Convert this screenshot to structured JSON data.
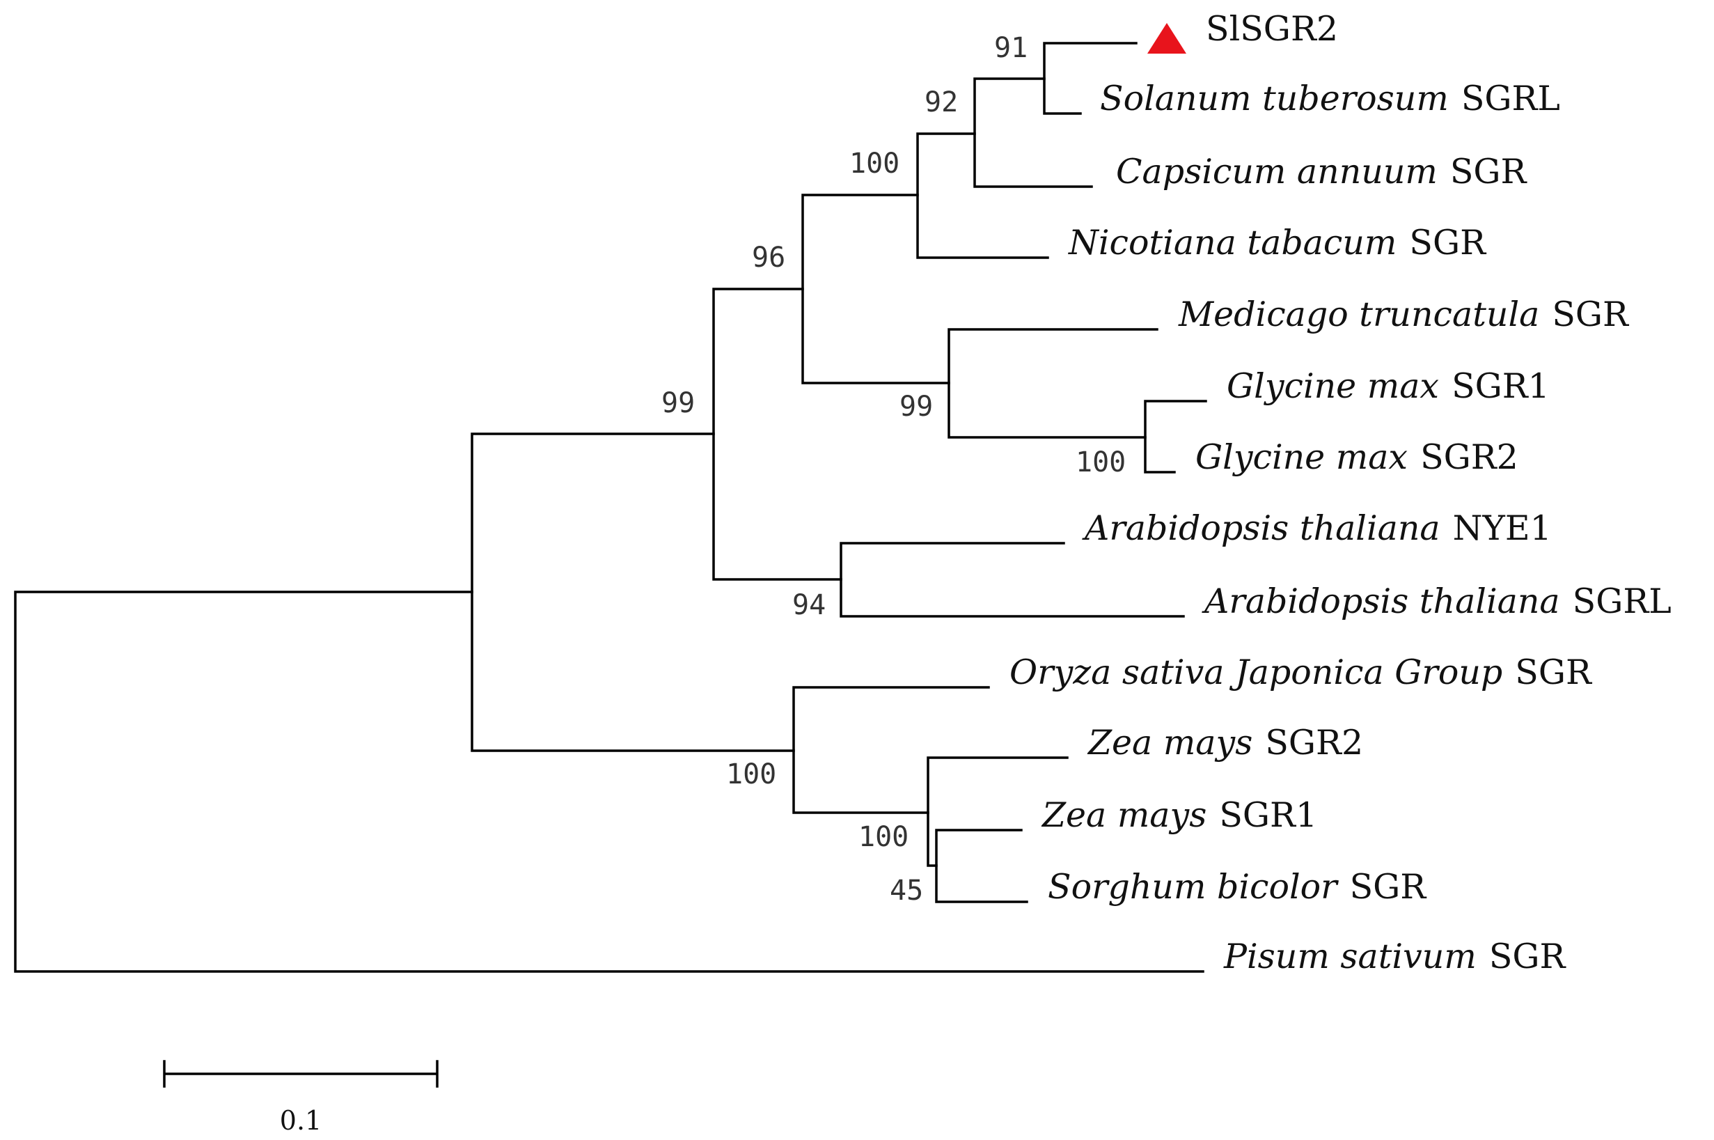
{
  "colors": {
    "branch": "#000000",
    "marker": "#e8141c",
    "text": "#111111",
    "support": "#333333"
  },
  "marker_icon": "red-triangle-icon",
  "taxa": [
    {
      "id": "slsgr2",
      "species": "",
      "gene": "SlSGR2",
      "marked": true
    },
    {
      "id": "stuberosum",
      "species": "Solanum tuberosum",
      "gene": "SGRL"
    },
    {
      "id": "cannuum",
      "species": "Capsicum annuum",
      "gene": "SGR"
    },
    {
      "id": "ntabacum",
      "species": "Nicotiana tabacum",
      "gene": "SGR"
    },
    {
      "id": "mtruncatula",
      "species": "Medicago truncatula",
      "gene": "SGR"
    },
    {
      "id": "gmax1",
      "species": "Glycine max",
      "gene": "SGR1"
    },
    {
      "id": "gmax2",
      "species": "Glycine max",
      "gene": "SGR2"
    },
    {
      "id": "athaliana_nye1",
      "species": "Arabidopsis thaliana",
      "gene": "NYE1"
    },
    {
      "id": "athaliana_sgrl",
      "species": "Arabidopsis thaliana",
      "gene": "SGRL"
    },
    {
      "id": "osativa",
      "species": "Oryza sativa Japonica Group",
      "gene": "SGR"
    },
    {
      "id": "zmays2",
      "species": "Zea mays",
      "gene": "SGR2"
    },
    {
      "id": "zmays1",
      "species": "Zea mays",
      "gene": "SGR1"
    },
    {
      "id": "sbicolor",
      "species": "Sorghum bicolor",
      "gene": "SGR"
    },
    {
      "id": "psativum",
      "species": "Pisum sativum",
      "gene": "SGR"
    }
  ],
  "bootstrap": {
    "n_slsgr2_stub": "91",
    "n_slsgr2_capsicum": "92",
    "n_solanaceae": "100",
    "n_eudicot_core": "96",
    "n_legume": "99",
    "n_glycine": "100",
    "n_eudicots": "99",
    "n_arabidopsis": "94",
    "n_monocots": "100",
    "n_zea_sorghum": "100",
    "n_zea1_sorghum": "45"
  },
  "scale_bar": {
    "label": "0.1"
  }
}
